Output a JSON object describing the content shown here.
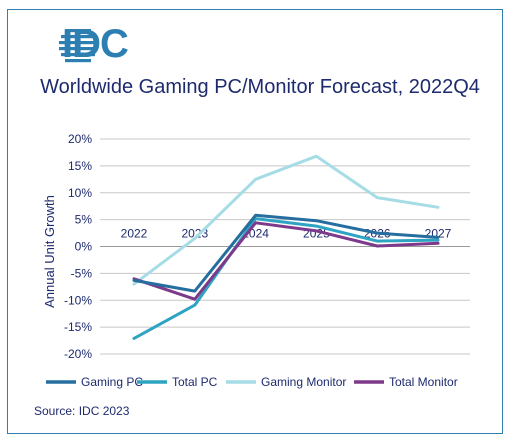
{
  "logo": {
    "text": "IDC"
  },
  "chart_data": {
    "type": "line",
    "title": "Worldwide Gaming PC/Monitor Forecast, 2022Q4",
    "xlabel": "",
    "ylabel": "Annual Unit Growth",
    "categories": [
      "2022",
      "2023",
      "2024",
      "2025",
      "2026",
      "2027"
    ],
    "ylim": [
      -20,
      20
    ],
    "yticks": [
      -20,
      -15,
      -10,
      -5,
      0,
      5,
      10,
      15,
      20
    ],
    "ytick_labels": [
      "-20%",
      "-15%",
      "-10%",
      "-5%",
      "0%",
      "5%",
      "10%",
      "15%",
      "20%"
    ],
    "grid": true,
    "legend": "bottom",
    "series": [
      {
        "name": "Gaming PC",
        "values": [
          -6.3,
          -8.3,
          5.8,
          4.8,
          2.5,
          1.7
        ],
        "color": "#256e9f"
      },
      {
        "name": "Total PC",
        "values": [
          -17.1,
          -10.9,
          5.2,
          3.8,
          1.0,
          1.2
        ],
        "color": "#2fa3c2"
      },
      {
        "name": "Gaming Monitor",
        "values": [
          -7.0,
          1.5,
          12.5,
          16.8,
          9.1,
          7.3
        ],
        "color": "#a6dce6"
      },
      {
        "name": "Total Monitor",
        "values": [
          -6.0,
          -9.8,
          4.4,
          2.9,
          0.1,
          0.6
        ],
        "color": "#7e3a8a"
      }
    ]
  },
  "source": "Source: IDC 2023"
}
